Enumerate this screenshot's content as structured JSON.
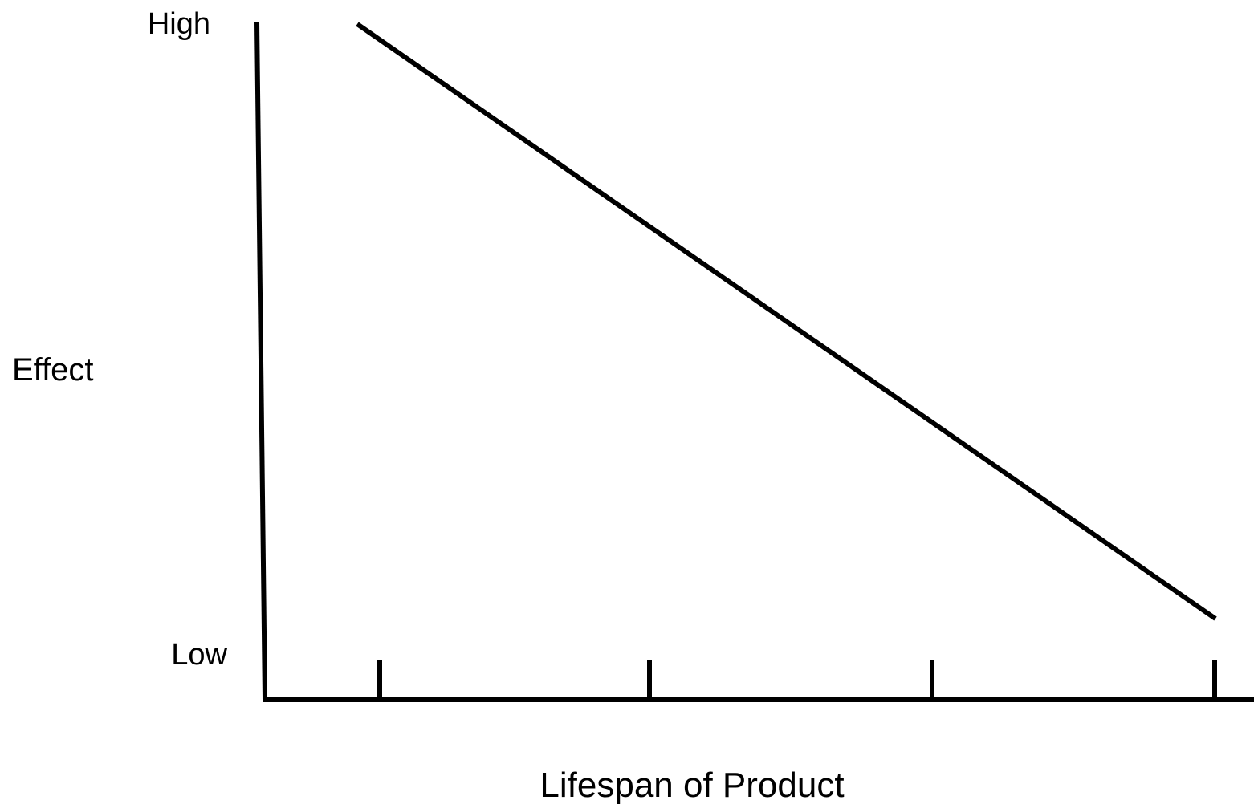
{
  "y_axis": {
    "title": "Effect",
    "high": "High",
    "low": "Low"
  },
  "x_axis": {
    "title": "Lifespan of Product"
  }
}
